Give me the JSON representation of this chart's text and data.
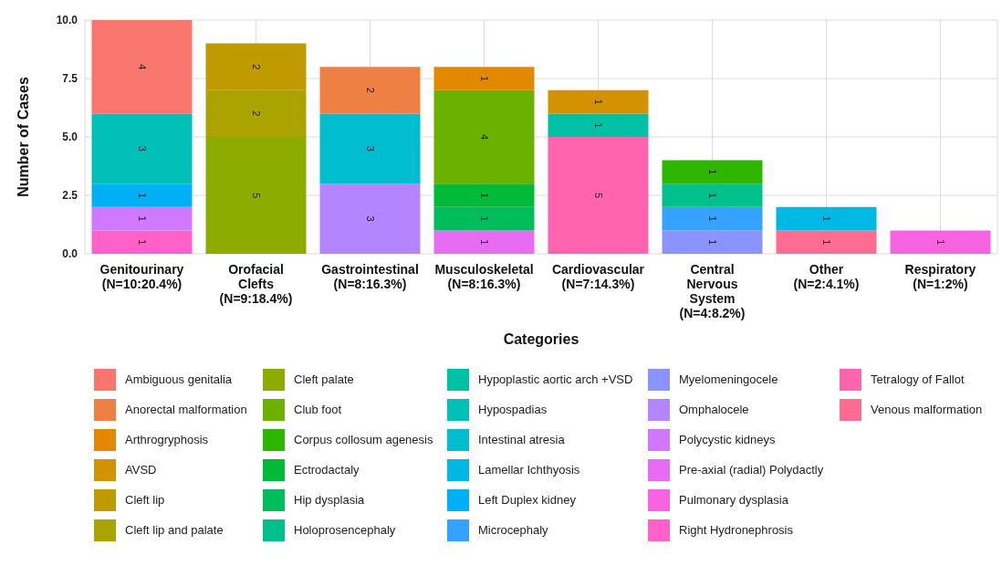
{
  "chart_data": {
    "type": "bar",
    "stacked": true,
    "data_labels": true,
    "grid": true,
    "legend": "bottom",
    "xlabel": "Categories",
    "ylabel": "Number of Cases",
    "categories": [
      "Genitourinary\n(N=10:20.4%)",
      "Orofacial\nClefts\n(N=9:18.4%)",
      "Gastrointestinal\n(N=8:16.3%)",
      "Musculoskeletal\n(N=8:16.3%)",
      "Cardiovascular\n(N=7:14.3%)",
      "Central\nNervous\nSystem\n(N=4:8.2%)",
      "Other\n(N=2:4.1%)",
      "Respiratory\n(N=1:2%)"
    ],
    "ylim": [
      0,
      10
    ],
    "yticks": [
      {
        "value": 0,
        "label": "0.0"
      },
      {
        "value": 2.5,
        "label": "2.5"
      },
      {
        "value": 5,
        "label": "5.0"
      },
      {
        "value": 7.5,
        "label": "7.5"
      },
      {
        "value": 10,
        "label": "10.0"
      }
    ],
    "series": [
      {
        "name": "Venous malformation",
        "color": "#FF6C91",
        "values": [
          null,
          null,
          null,
          null,
          null,
          null,
          1,
          null
        ]
      },
      {
        "name": "Tetralogy of Fallot",
        "color": "#FF65AE",
        "values": [
          null,
          null,
          null,
          null,
          5,
          null,
          null,
          null
        ]
      },
      {
        "name": "Right Hydronephrosis",
        "color": "#FF61C9",
        "values": [
          1,
          null,
          null,
          null,
          null,
          null,
          null,
          null
        ]
      },
      {
        "name": "Pulmonary dysplasia",
        "color": "#F763E0",
        "values": [
          null,
          null,
          null,
          null,
          null,
          null,
          null,
          1
        ]
      },
      {
        "name": "Pre-axial (radial) Polydactly",
        "color": "#E76BF3",
        "values": [
          null,
          null,
          null,
          1,
          null,
          null,
          null,
          null
        ]
      },
      {
        "name": "Polycystic kidneys",
        "color": "#D078FF",
        "values": [
          1,
          null,
          null,
          null,
          null,
          null,
          null,
          null
        ]
      },
      {
        "name": "Omphalocele",
        "color": "#B385FF",
        "values": [
          null,
          null,
          3,
          null,
          null,
          null,
          null,
          null
        ]
      },
      {
        "name": "Myelomeningocele",
        "color": "#8B93FF",
        "values": [
          null,
          null,
          null,
          null,
          null,
          1,
          null,
          null
        ]
      },
      {
        "name": "Microcephaly",
        "color": "#35A2FF",
        "values": [
          null,
          null,
          null,
          null,
          null,
          1,
          null,
          null
        ]
      },
      {
        "name": "Left Duplex kidney",
        "color": "#00B0F6",
        "values": [
          1,
          null,
          null,
          null,
          null,
          null,
          null,
          null
        ]
      },
      {
        "name": "Lamellar Ichthyosis",
        "color": "#00B8E5",
        "values": [
          null,
          null,
          null,
          null,
          null,
          null,
          1,
          null
        ]
      },
      {
        "name": "Intestinal atresia",
        "color": "#00BDD0",
        "values": [
          null,
          null,
          3,
          null,
          null,
          null,
          null,
          null
        ]
      },
      {
        "name": "Hypospadias",
        "color": "#00C0B8",
        "values": [
          3,
          null,
          null,
          null,
          null,
          null,
          null,
          null
        ]
      },
      {
        "name": "Hypoplastic aortic arch +VSD",
        "color": "#00C1A3",
        "values": [
          null,
          null,
          null,
          null,
          1,
          null,
          null,
          null
        ]
      },
      {
        "name": "Holoprosencephaly",
        "color": "#00C08B",
        "values": [
          null,
          null,
          null,
          null,
          null,
          1,
          null,
          null
        ]
      },
      {
        "name": "Hip dysplasia",
        "color": "#00BD5C",
        "values": [
          null,
          null,
          null,
          1,
          null,
          null,
          null,
          null
        ]
      },
      {
        "name": "Ectrodactaly",
        "color": "#00BA38",
        "values": [
          null,
          null,
          null,
          1,
          null,
          null,
          null,
          null
        ]
      },
      {
        "name": "Corpus collosum agenesis",
        "color": "#2EB600",
        "values": [
          null,
          null,
          null,
          null,
          null,
          1,
          null,
          null
        ]
      },
      {
        "name": "Club foot",
        "color": "#6BB100",
        "values": [
          null,
          null,
          null,
          4,
          null,
          null,
          null,
          null
        ]
      },
      {
        "name": "Cleft palate",
        "color": "#8EAB00",
        "values": [
          null,
          5,
          null,
          null,
          null,
          null,
          null,
          null
        ]
      },
      {
        "name": "Cleft lip and palate",
        "color": "#AAA300",
        "values": [
          null,
          2,
          null,
          null,
          null,
          null,
          null,
          null
        ]
      },
      {
        "name": "Cleft lip",
        "color": "#C09B00",
        "values": [
          null,
          2,
          null,
          null,
          null,
          null,
          null,
          null
        ]
      },
      {
        "name": "AVSD",
        "color": "#D39200",
        "values": [
          null,
          null,
          null,
          null,
          1,
          null,
          null,
          null
        ]
      },
      {
        "name": "Arthrogryphosis",
        "color": "#E38900",
        "values": [
          null,
          null,
          null,
          1,
          null,
          null,
          null,
          null
        ]
      },
      {
        "name": "Anorectal malformation",
        "color": "#EE8044",
        "values": [
          null,
          null,
          2,
          null,
          null,
          null,
          null,
          null
        ]
      },
      {
        "name": "Ambiguous genitalia",
        "color": "#F8766D",
        "values": [
          4,
          null,
          null,
          null,
          null,
          null,
          null,
          null
        ]
      }
    ]
  }
}
